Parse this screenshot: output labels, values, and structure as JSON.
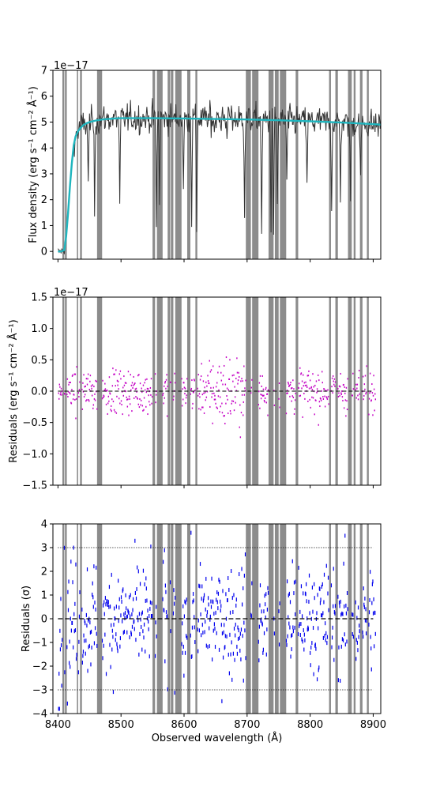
{
  "chart_data": [
    {
      "type": "line",
      "panel": "flux",
      "exponent_label": "1e−17",
      "ylabel": "Flux density (erg s⁻¹ cm⁻² Å⁻¹)",
      "xlim": [
        8392,
        8912
      ],
      "ylim": [
        -0.3,
        7.0
      ],
      "yticks": [
        0,
        1,
        2,
        3,
        4,
        5,
        6,
        7
      ],
      "series": [
        {
          "x": [
            8400,
            8405,
            8410,
            8413,
            8416,
            8419,
            8422,
            8425,
            8428,
            8432,
            8436,
            8440,
            8445,
            8450,
            8455,
            8460,
            8470,
            8480,
            8490,
            8500,
            8520,
            8550,
            8600,
            8650,
            8700,
            8750,
            8800,
            8850,
            8900,
            8912
          ],
          "y": [
            0.0,
            0.0,
            0.05,
            0.6,
            1.5,
            2.5,
            3.4,
            4.1,
            4.45,
            4.65,
            4.78,
            4.88,
            4.95,
            5.0,
            5.03,
            5.06,
            5.1,
            5.12,
            5.14,
            5.15,
            5.15,
            5.15,
            5.14,
            5.12,
            5.1,
            5.07,
            5.03,
            4.98,
            4.92,
            4.9
          ]
        }
      ]
    },
    {
      "type": "scatter",
      "panel": "residuals",
      "exponent_label": "1e−17",
      "ylabel": "Residuals (erg s⁻¹ cm⁻² Å⁻¹)",
      "xlim": [
        8392,
        8912
      ],
      "ylim": [
        -1.5,
        1.5
      ],
      "yticks": [
        -1.5,
        -1.0,
        -0.5,
        0.0,
        0.5,
        1.0,
        1.5
      ],
      "yticklabels": [
        "−1.5",
        "−1.0",
        "−0.5",
        "0.0",
        "0.5",
        "1.0",
        "1.5"
      ],
      "reference_line": 0.0
    },
    {
      "type": "scatter",
      "panel": "normalized residuals",
      "ylabel": "Residuals (σ)",
      "xlabel": "Observed wavelength (Å)",
      "xlim": [
        8392,
        8912
      ],
      "ylim": [
        -4,
        4
      ],
      "yticks": [
        -4,
        -3,
        -2,
        -1,
        0,
        1,
        2,
        3,
        4
      ],
      "yticklabels": [
        "−4",
        "−3",
        "−2",
        "−1",
        "0",
        "1",
        "2",
        "3",
        "4"
      ],
      "xticks": [
        8400,
        8500,
        8600,
        8700,
        8800,
        8900
      ],
      "reference_lines": [
        -3,
        0,
        3
      ]
    }
  ],
  "masked_regions": [
    [
      8407,
      8410
    ],
    [
      8411,
      8414
    ],
    [
      8430,
      8432
    ],
    [
      8435,
      8438
    ],
    [
      8462,
      8470
    ],
    [
      8550,
      8554
    ],
    [
      8557,
      8566
    ],
    [
      8574,
      8578
    ],
    [
      8579,
      8583
    ],
    [
      8586,
      8596
    ],
    [
      8605,
      8610
    ],
    [
      8618,
      8621
    ],
    [
      8698,
      8706
    ],
    [
      8708,
      8718
    ],
    [
      8734,
      8742
    ],
    [
      8744,
      8750
    ],
    [
      8752,
      8762
    ],
    [
      8777,
      8781
    ],
    [
      8830,
      8833
    ],
    [
      8840,
      8844
    ],
    [
      8860,
      8866
    ],
    [
      8869,
      8872
    ],
    [
      8879,
      8883
    ],
    [
      8890,
      8893
    ]
  ],
  "colors": {
    "model": "#1fb5be",
    "data": "#333333",
    "residuals": "#c400c4",
    "normalized_residuals": "#0000ee",
    "mask": "#8c8c8c"
  }
}
